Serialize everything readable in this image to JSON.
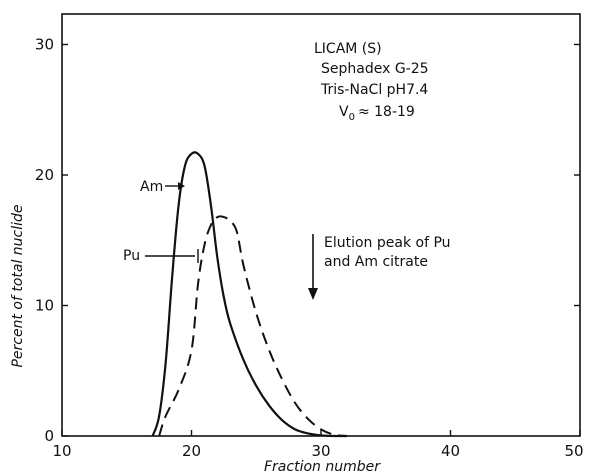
{
  "chart_data": {
    "type": "line",
    "xlabel": "Fraction number",
    "ylabel": "Percent of total nuclide",
    "xlim": [
      10,
      50
    ],
    "ylim": [
      0,
      32
    ],
    "x_ticks": [
      "10",
      "20",
      "30",
      "40",
      "50"
    ],
    "y_ticks": [
      "0",
      "10",
      "20",
      "30"
    ],
    "grid": false,
    "series": [
      {
        "name": "Am",
        "style": "solid",
        "color": "#111111",
        "x": [
          17.0,
          17.5,
          18.0,
          18.5,
          19.0,
          19.5,
          20.0,
          20.5,
          21.0,
          21.5,
          22.0,
          22.5,
          23.0,
          24.0,
          25.0,
          26.0,
          27.0,
          28.0,
          29.0,
          30.0,
          31.0,
          32.0
        ],
        "y": [
          0.0,
          1.5,
          5.5,
          12.0,
          17.5,
          20.5,
          21.4,
          21.4,
          20.5,
          17.5,
          13.5,
          10.5,
          8.5,
          5.8,
          3.8,
          2.3,
          1.2,
          0.5,
          0.2,
          0.05,
          0.0,
          0.0
        ]
      },
      {
        "name": "Pu",
        "style": "dashed",
        "color": "#111111",
        "x": [
          17.5,
          18.0,
          19.0,
          20.0,
          20.5,
          21.0,
          21.5,
          22.0,
          22.5,
          23.0,
          23.5,
          24.0,
          25.0,
          26.0,
          27.0,
          28.0,
          29.0,
          30.0,
          31.0,
          32.0
        ],
        "y": [
          0.0,
          1.5,
          3.5,
          6.5,
          11.5,
          14.5,
          16.0,
          16.6,
          16.6,
          16.3,
          15.5,
          13.0,
          9.3,
          6.5,
          4.3,
          2.5,
          1.3,
          0.5,
          0.1,
          0.0
        ]
      }
    ],
    "annotations": {
      "title_lines": [
        "LICAM (S)",
        "Sephadex G-25",
        "Tris-NaCl pH7.4"
      ],
      "vo_label": "V",
      "vo_subscript": "0",
      "vo_value": "≈ 18-19",
      "elution_lines": [
        "Elution peak of Pu",
        "and Am citrate"
      ],
      "elution_arrow_x": 29.5,
      "am_label": "Am",
      "pu_label": "Pu"
    }
  }
}
